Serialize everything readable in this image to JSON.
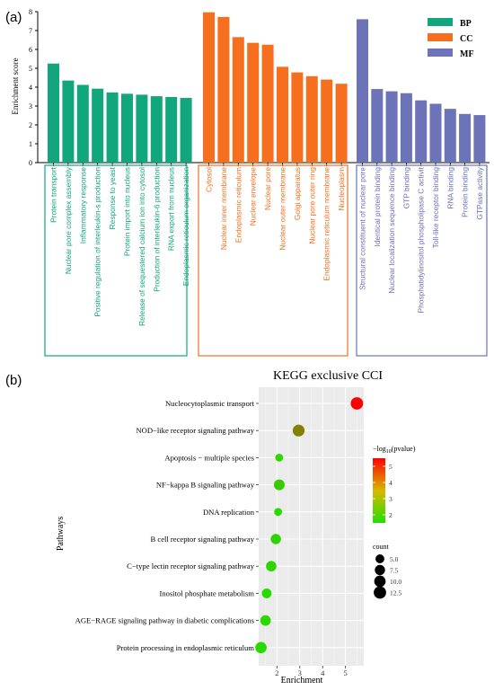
{
  "panel_a": {
    "label": "(a)",
    "ylabel": "Enrichment score",
    "legend": [
      {
        "name": "BP",
        "color": "#12a67c"
      },
      {
        "name": "CC",
        "color": "#f66f1e"
      },
      {
        "name": "MF",
        "color": "#6c73b8"
      }
    ]
  },
  "panel_b": {
    "label": "(b)",
    "title": "KEGG exclusive CCI",
    "xlabel": "Enrichment",
    "ylabel": "Pathways",
    "colorbar_title": "−log10(pvalue)",
    "size_title": "count"
  },
  "chart_data": [
    {
      "type": "bar",
      "title": "",
      "ylabel": "Enrichment score",
      "ylim": [
        0,
        8
      ],
      "yticks": [
        0,
        1,
        2,
        3,
        4,
        5,
        6,
        7,
        8
      ],
      "series": [
        {
          "name": "BP",
          "color": "#12a67c",
          "categories": [
            "Protein transport",
            "Nuclear pore complex assembly",
            "Inflammatory response",
            "Positive regulation of interleukin-s production",
            "Response to yeast",
            "Protein import into nucleus",
            "Release of sequestered calcium ion into cytosol",
            "Production of interleukin-6 production",
            "RNA export from nucleus",
            "Endoplasmic reticulum organization"
          ],
          "values": [
            5.25,
            4.35,
            4.12,
            3.92,
            3.72,
            3.65,
            3.6,
            3.52,
            3.48,
            3.43
          ]
        },
        {
          "name": "CC",
          "color": "#f66f1e",
          "categories": [
            "Cytosol",
            "Nuclear inner membrane",
            "Endoplasmic reticulum",
            "Nuclear envelope",
            "Nuclear pore",
            "Nuclear outer membrane",
            "Golgi apparatus",
            "Nuclear pore outer ring",
            "Endoplasmic reticulum membrane",
            "Nucleoplasm"
          ],
          "values": [
            7.97,
            7.72,
            6.65,
            6.35,
            6.25,
            5.08,
            4.78,
            4.58,
            4.4,
            4.18
          ]
        },
        {
          "name": "MF",
          "color": "#6c73b8",
          "categories": [
            "Structural constituent of nuclear pore",
            "Identical protein binding",
            "Nuclear localization sequence binding",
            "GTP binding",
            "Phosphatidylinositol phospholipase C activit",
            "Toll-like receptor binding",
            "RNA binding",
            "Protein binding",
            "GTPase activity"
          ],
          "values": [
            7.6,
            3.9,
            3.78,
            3.68,
            3.3,
            3.12,
            2.85,
            2.58,
            2.52
          ]
        }
      ]
    },
    {
      "type": "scatter",
      "title": "KEGG exclusive CCI",
      "xlabel": "Enrichment",
      "ylabel": "Pathways",
      "xlim": [
        1.2,
        5.8
      ],
      "xticks": [
        2,
        3,
        4,
        5
      ],
      "categories": [
        "Nucleocytoplasmic transport",
        "NOD−like receptor signaling pathway",
        "Apoptosis − multiple species",
        "NF−kappa B signaling pathway",
        "DNA replication",
        "B cell receptor signaling pathway",
        "C−type lectin receptor signaling pathway",
        "Inositol phosphate metabolism",
        "AGE−RAGE signaling pathway in diabetic complications",
        "Protein processing in endoplasmic reticulum"
      ],
      "points": [
        {
          "category": "Nucleocytoplasmic transport",
          "x": 5.5,
          "count": 12.5,
          "pvalue_log": 5.5
        },
        {
          "category": "NOD−like receptor signaling pathway",
          "x": 2.95,
          "count": 11,
          "pvalue_log": 3.2
        },
        {
          "category": "Apoptosis − multiple species",
          "x": 2.1,
          "count": 3.5,
          "pvalue_log": 1.6
        },
        {
          "category": "NF−kappa B signaling pathway",
          "x": 2.1,
          "count": 8.5,
          "pvalue_log": 1.9
        },
        {
          "category": "DNA replication",
          "x": 2.05,
          "count": 3.5,
          "pvalue_log": 1.6
        },
        {
          "category": "B cell receptor signaling pathway",
          "x": 1.95,
          "count": 7.5,
          "pvalue_log": 1.7
        },
        {
          "category": "C−type lectin receptor signaling pathway",
          "x": 1.75,
          "count": 8,
          "pvalue_log": 1.7
        },
        {
          "category": "Inositol phosphate metabolism",
          "x": 1.55,
          "count": 6.5,
          "pvalue_log": 1.6
        },
        {
          "category": "AGE−RAGE signaling pathway in diabetic complications",
          "x": 1.5,
          "count": 8,
          "pvalue_log": 1.6
        },
        {
          "category": "Protein processing in endoplasmic reticulum",
          "x": 1.3,
          "count": 10,
          "pvalue_log": 1.6
        }
      ],
      "color_scale": {
        "title": "−log10(pvalue)",
        "ticks": [
          2,
          3,
          4,
          5
        ],
        "range": [
          1.5,
          5.5
        ],
        "low_color": "#22e000",
        "high_color": "#ff0000"
      },
      "size_scale": {
        "title": "count",
        "ticks": [
          "5.0",
          "7.5",
          "10.0",
          "12.5"
        ]
      },
      "grid": true
    }
  ]
}
